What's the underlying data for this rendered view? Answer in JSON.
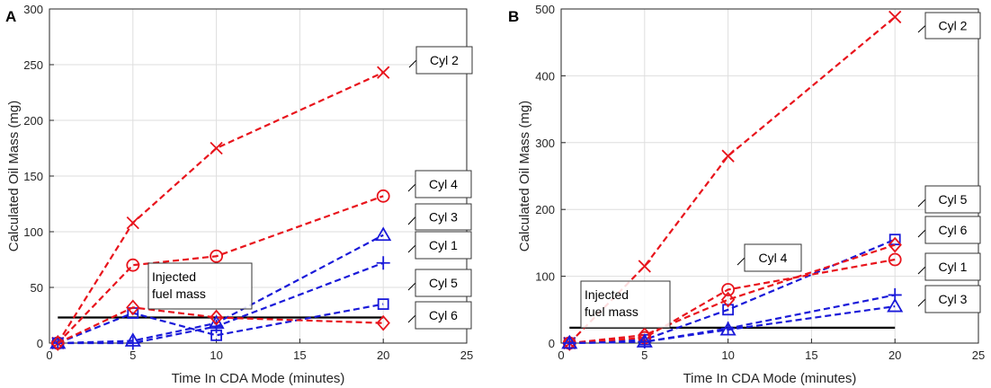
{
  "chart_data": [
    {
      "panel_label": "A",
      "type": "line",
      "xlabel": "Time In CDA Mode (minutes)",
      "ylabel": "Calculated Oil Mass (mg)",
      "xlim": [
        0,
        25
      ],
      "ylim": [
        0,
        300
      ],
      "xticks": [
        0,
        5,
        10,
        15,
        20,
        25
      ],
      "yticks": [
        0,
        50,
        100,
        150,
        200,
        250,
        300
      ],
      "grid": true,
      "colors": {
        "red": "#e8141c",
        "blue": "#1a1ad9",
        "axis": "#262626",
        "grid": "#dedede"
      },
      "series": [
        {
          "name": "Cyl 2",
          "color": "red",
          "marker": "x",
          "x": [
            0.5,
            5,
            10,
            20
          ],
          "y": [
            0,
            108,
            175,
            243
          ]
        },
        {
          "name": "Cyl 4",
          "color": "red",
          "marker": "o",
          "x": [
            0.5,
            5,
            10,
            20
          ],
          "y": [
            0,
            70,
            78,
            132
          ]
        },
        {
          "name": "Cyl 3",
          "color": "blue",
          "marker": "^",
          "x": [
            0.5,
            5,
            10,
            20
          ],
          "y": [
            0,
            2,
            18,
            97
          ]
        },
        {
          "name": "Cyl 1",
          "color": "blue",
          "marker": "+",
          "x": [
            0.5,
            5,
            10,
            20
          ],
          "y": [
            0,
            0,
            15,
            72
          ]
        },
        {
          "name": "Cyl 5",
          "color": "blue",
          "marker": "s",
          "x": [
            0.5,
            5,
            10,
            20
          ],
          "y": [
            0,
            27,
            7,
            35
          ]
        },
        {
          "name": "Cyl 6",
          "color": "red",
          "marker": "d",
          "x": [
            0.5,
            5,
            10,
            20
          ],
          "y": [
            0,
            32,
            23,
            18
          ]
        }
      ],
      "reference_line": {
        "y": 23,
        "x": [
          0.5,
          20
        ],
        "label": [
          "Injected",
          "fuel mass"
        ]
      }
    },
    {
      "panel_label": "B",
      "type": "line",
      "xlabel": "Time In CDA Mode (minutes)",
      "ylabel": "Calculated Oil Mass (mg)",
      "xlim": [
        0,
        25
      ],
      "ylim": [
        0,
        500
      ],
      "xticks": [
        0,
        5,
        10,
        15,
        20,
        25
      ],
      "yticks": [
        0,
        100,
        200,
        300,
        400,
        500
      ],
      "grid": true,
      "colors": {
        "red": "#e8141c",
        "blue": "#1a1ad9",
        "axis": "#262626",
        "grid": "#dedede"
      },
      "series": [
        {
          "name": "Cyl 2",
          "color": "red",
          "marker": "x",
          "x": [
            0.5,
            5,
            10,
            20
          ],
          "y": [
            0,
            115,
            280,
            488
          ]
        },
        {
          "name": "Cyl 5",
          "color": "blue",
          "marker": "s",
          "x": [
            0.5,
            5,
            10,
            20
          ],
          "y": [
            0,
            5,
            50,
            155
          ]
        },
        {
          "name": "Cyl 6",
          "color": "red",
          "marker": "d",
          "x": [
            0.5,
            5,
            10,
            20
          ],
          "y": [
            0,
            12,
            65,
            147
          ]
        },
        {
          "name": "Cyl 4",
          "color": "red",
          "marker": "o",
          "x": [
            0.5,
            5,
            10,
            20
          ],
          "y": [
            0,
            8,
            80,
            125
          ]
        },
        {
          "name": "Cyl 1",
          "color": "blue",
          "marker": "+",
          "x": [
            0.5,
            5,
            10,
            20
          ],
          "y": [
            0,
            2,
            22,
            72
          ]
        },
        {
          "name": "Cyl 3",
          "color": "blue",
          "marker": "^",
          "x": [
            0.5,
            5,
            10,
            20
          ],
          "y": [
            0,
            2,
            20,
            55
          ]
        }
      ],
      "reference_line": {
        "y": 23,
        "x": [
          0.5,
          20
        ],
        "label": [
          "Injected",
          "fuel mass"
        ]
      }
    }
  ]
}
